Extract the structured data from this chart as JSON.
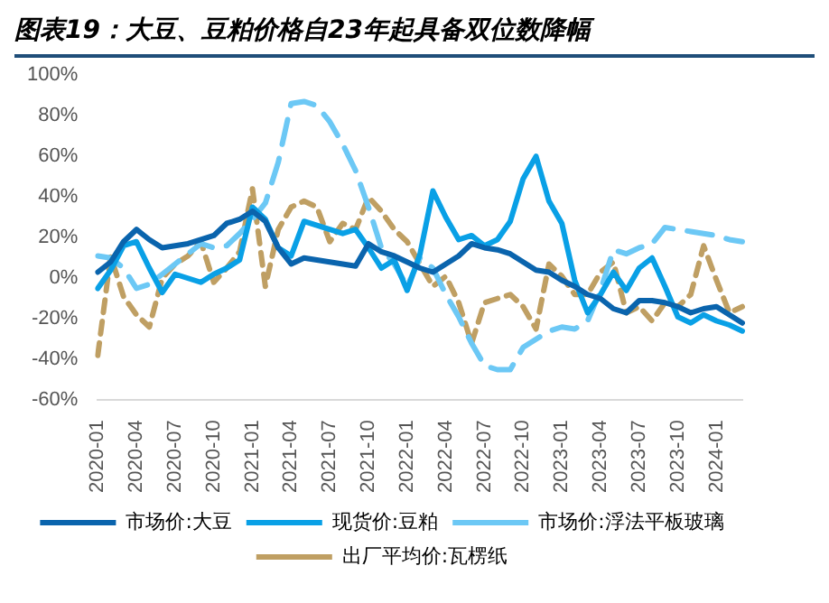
{
  "chart_data": {
    "type": "line",
    "title": "图表19：大豆、豆粕价格自23年起具备双位数降幅",
    "categories": [
      "2020-01",
      null,
      null,
      "2020-04",
      null,
      null,
      "2020-07",
      null,
      null,
      "2020-10",
      null,
      null,
      "2021-01",
      null,
      null,
      "2021-04",
      null,
      null,
      "2021-07",
      null,
      null,
      "2021-10",
      null,
      null,
      "2022-01",
      null,
      null,
      "2022-04",
      null,
      null,
      "2022-07",
      null,
      null,
      "2022-10",
      null,
      null,
      "2023-01",
      null,
      null,
      "2023-04",
      null,
      null,
      "2023-07",
      null,
      null,
      "2023-10",
      null,
      null,
      "2024-01",
      null,
      null
    ],
    "series": [
      {
        "name": "市场价:大豆",
        "color": "#0a64ad",
        "line_style": "solid",
        "values": [
          3,
          8,
          18,
          24,
          19,
          15,
          16,
          17,
          19,
          21,
          27,
          29,
          33,
          28,
          15,
          7,
          10,
          9,
          8,
          7,
          6,
          17,
          13,
          11,
          8,
          5,
          3,
          7,
          11,
          17,
          15,
          14,
          12,
          8,
          4,
          3,
          -1,
          -4,
          -8,
          -10,
          -15,
          -17,
          -11,
          -11,
          -12,
          -14,
          -17,
          -15,
          -14,
          -18,
          -22
        ]
      },
      {
        "name": "现货价:豆粕",
        "color": "#09a0e6",
        "line_style": "solid",
        "values": [
          -5,
          4,
          16,
          18,
          5,
          -7,
          2,
          0,
          -2,
          2,
          5,
          9,
          35,
          29,
          15,
          11,
          28,
          26,
          24,
          22,
          24,
          15,
          5,
          9,
          -6,
          12,
          43,
          30,
          19,
          21,
          16,
          19,
          28,
          49,
          60,
          38,
          27,
          -1,
          -17,
          -8,
          3,
          -6,
          5,
          10,
          -4,
          -19,
          -22,
          -18,
          -21,
          -23,
          -26
        ]
      },
      {
        "name": "市场价:浮法平板玻璃",
        "color": "#6cc8f5",
        "line_style": "dashed",
        "values": [
          11,
          10,
          5,
          -5,
          -3,
          2,
          7,
          12,
          17,
          15,
          16,
          22,
          29,
          37,
          57,
          86,
          87,
          85,
          77,
          66,
          53,
          35,
          15,
          7,
          -4,
          10,
          5,
          -8,
          -19,
          -32,
          -43,
          -45,
          -45,
          -34,
          -30,
          -26,
          -24,
          -25,
          -21,
          -6,
          14,
          12,
          15,
          17,
          25,
          24,
          23,
          22,
          21,
          19,
          18
        ]
      },
      {
        "name": "出厂平均价:瓦楞纸",
        "color": "#bf9f63",
        "line_style": "dotted",
        "values": [
          -38,
          11,
          -9,
          -18,
          -24,
          0,
          7,
          11,
          18,
          -2,
          5,
          13,
          44,
          -4,
          24,
          35,
          38,
          35,
          18,
          27,
          24,
          40,
          33,
          24,
          18,
          7,
          -4,
          1,
          -12,
          -32,
          -12,
          -10,
          -8,
          -14,
          -25,
          7,
          1,
          -8,
          -8,
          3,
          8,
          -17,
          -14,
          -21,
          -12,
          -14,
          -8,
          16,
          -1,
          -17,
          -14
        ]
      }
    ],
    "ylim": [
      -60,
      100
    ],
    "yticks": [
      {
        "value": -60,
        "label": "-60%"
      },
      {
        "value": -40,
        "label": "-40%"
      },
      {
        "value": -20,
        "label": "-20%"
      },
      {
        "value": 0,
        "label": "0%"
      },
      {
        "value": 20,
        "label": "20%"
      },
      {
        "value": 40,
        "label": "40%"
      },
      {
        "value": 60,
        "label": "60%"
      },
      {
        "value": 80,
        "label": "80%"
      },
      {
        "value": 100,
        "label": "100%"
      }
    ],
    "grid": false,
    "legend": "bottom",
    "marker": "none"
  }
}
